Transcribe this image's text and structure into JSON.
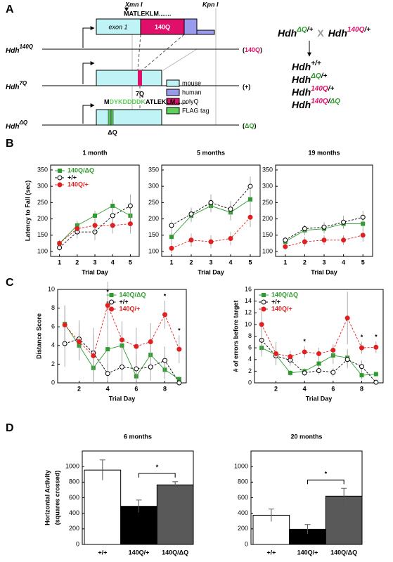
{
  "panel_labels": [
    "A",
    "B",
    "C",
    "D"
  ],
  "diagram": {
    "alleles": [
      {
        "gene": "Hdh",
        "sup": "140Q",
        "product": [
          "(",
          "140Q",
          ")"
        ],
        "exon": "exon 1",
        "repeat": "140Q",
        "xmn": "Xmn I",
        "kpn": "Kpn I",
        "protein": "MATLEKLM......."
      },
      {
        "gene": "Hdh",
        "sup": "7Q",
        "product": [
          "(+)"
        ],
        "repeat": "7Q"
      },
      {
        "gene": "Hdh",
        "sup": "ΔQ",
        "product": [
          "(",
          "ΔQ",
          ")"
        ],
        "repeat": "ΔQ",
        "protein": [
          "M",
          "DYKDDDDK",
          "ATLEKLM......."
        ]
      }
    ],
    "legend": [
      "mouse",
      "human",
      "polyQ",
      "FLAG tag"
    ],
    "cross": {
      "parents": [
        [
          "Hdh",
          "ΔQ",
          "/+"
        ],
        [
          "Hdh",
          "140Q",
          "/+"
        ]
      ],
      "operator": "X",
      "offspring": [
        [
          "Hdh",
          "+/+"
        ],
        [
          "Hdh",
          "ΔQ",
          "/+"
        ],
        [
          "Hdh",
          "140Q",
          "/+"
        ],
        [
          "Hdh",
          "140Q",
          "/",
          "ΔQ"
        ]
      ]
    }
  },
  "chart_data": [
    {
      "type": "line",
      "title": "1 month",
      "x_label": "Trial Day",
      "y_label": "Latency to Fall (sec)",
      "x": [
        1,
        2,
        3,
        4,
        5
      ],
      "xlim": [
        0.5,
        5.5
      ],
      "xticks": [
        1,
        2,
        3,
        4,
        5
      ],
      "ylim": [
        85,
        365
      ],
      "yticks": [
        100,
        150,
        200,
        250,
        300,
        350
      ],
      "legend": "upper left",
      "series": [
        {
          "name": "140Q/ΔQ",
          "color": "#2e9b2e",
          "marker": "square",
          "dash": false,
          "values": [
            125,
            180,
            210,
            240,
            210
          ],
          "errors": [
            10,
            15,
            15,
            20,
            25
          ]
        },
        {
          "name": "+/+",
          "color": "#000000",
          "marker": "circle-open",
          "dash": true,
          "values": [
            112,
            160,
            160,
            210,
            240
          ],
          "errors": [
            10,
            20,
            25,
            25,
            35
          ]
        },
        {
          "name": "140Q/+",
          "color": "#e02020",
          "marker": "circle",
          "dash": true,
          "values": [
            125,
            170,
            180,
            180,
            185
          ],
          "errors": [
            10,
            15,
            20,
            25,
            30
          ]
        }
      ]
    },
    {
      "type": "line",
      "title": "5 months",
      "x_label": "Trial Day",
      "x": [
        1,
        2,
        3,
        4,
        5
      ],
      "xlim": [
        0.5,
        5.5
      ],
      "xticks": [
        1,
        2,
        3,
        4,
        5
      ],
      "ylim": [
        85,
        365
      ],
      "yticks": [
        100,
        150,
        200,
        250,
        300,
        350
      ],
      "series": [
        {
          "name": "140Q/ΔQ",
          "color": "#2e9b2e",
          "marker": "square",
          "dash": false,
          "values": [
            145,
            210,
            240,
            220,
            260
          ],
          "errors": [
            20,
            20,
            20,
            25,
            30
          ]
        },
        {
          "name": "+/+",
          "color": "#000000",
          "marker": "circle-open",
          "dash": true,
          "values": [
            180,
            215,
            250,
            230,
            300
          ],
          "errors": [
            15,
            20,
            25,
            25,
            30
          ]
        },
        {
          "name": "140Q/+",
          "color": "#e02020",
          "marker": "circle",
          "dash": true,
          "values": [
            110,
            135,
            130,
            140,
            205
          ],
          "errors": [
            15,
            20,
            20,
            20,
            30
          ]
        }
      ]
    },
    {
      "type": "line",
      "title": "19 months",
      "x_label": "Trial Day",
      "x": [
        1,
        2,
        3,
        4,
        5
      ],
      "xlim": [
        0.5,
        5.5
      ],
      "xticks": [
        1,
        2,
        3,
        4,
        5
      ],
      "ylim": [
        85,
        365
      ],
      "yticks": [
        100,
        150,
        200,
        250,
        300,
        350
      ],
      "series": [
        {
          "name": "140Q/ΔQ",
          "color": "#2e9b2e",
          "marker": "square",
          "dash": false,
          "values": [
            130,
            165,
            170,
            185,
            185
          ],
          "errors": [
            10,
            15,
            15,
            15,
            20
          ]
        },
        {
          "name": "+/+",
          "color": "#000000",
          "marker": "circle-open",
          "dash": true,
          "values": [
            135,
            170,
            175,
            190,
            205
          ],
          "errors": [
            10,
            12,
            15,
            20,
            20
          ]
        },
        {
          "name": "140Q/+",
          "color": "#e02020",
          "marker": "circle",
          "dash": true,
          "values": [
            115,
            130,
            135,
            135,
            150
          ],
          "errors": [
            10,
            15,
            15,
            15,
            20
          ]
        }
      ]
    },
    {
      "type": "line",
      "x_label": "Trial Day",
      "y_label": "Distance Score",
      "x": [
        1,
        2,
        3,
        4,
        5,
        6,
        7,
        8,
        9
      ],
      "xlim": [
        0.5,
        9.5
      ],
      "xticks": [
        2,
        4,
        6,
        8
      ],
      "ylim": [
        0,
        10
      ],
      "yticks": [
        0,
        2,
        4,
        6,
        8,
        10
      ],
      "legend": "upper center",
      "series": [
        {
          "name": "140Q/ΔQ",
          "color": "#2e9b2e",
          "marker": "square",
          "dash": false,
          "values": [
            6.3,
            4.0,
            1.6,
            3.6,
            4.0,
            0.7,
            3.0,
            1.4,
            0.4
          ],
          "errors": [
            2,
            1.5,
            1.5,
            2.5,
            2,
            1,
            1.5,
            1,
            0.3
          ]
        },
        {
          "name": "+/+",
          "color": "#000000",
          "marker": "circle-open",
          "dash": true,
          "values": [
            4.2,
            4.7,
            3.2,
            1.0,
            1.7,
            1.5,
            1.7,
            2.4,
            0.0
          ],
          "errors": [
            2.5,
            2,
            2,
            1,
            1.5,
            1.5,
            1.5,
            1.5,
            0.2
          ]
        },
        {
          "name": "140Q/+",
          "color": "#e02020",
          "marker": "circle",
          "dash": true,
          "values": [
            6.2,
            4.4,
            2.9,
            8.3,
            4.6,
            3.9,
            4.4,
            7.3,
            3.6
          ],
          "errors": [
            2,
            2,
            3,
            2.5,
            2,
            2,
            2,
            1.5,
            1.5
          ]
        }
      ],
      "annotations": [
        {
          "x": 4,
          "text": "*"
        },
        {
          "x": 8,
          "text": "*"
        },
        {
          "x": 9,
          "text": "*"
        }
      ]
    },
    {
      "type": "line",
      "x_label": "Trial Day",
      "y_label": "# of errors before target",
      "x": [
        1,
        2,
        3,
        4,
        5,
        6,
        7,
        8,
        9
      ],
      "xlim": [
        0.5,
        9.5
      ],
      "xticks": [
        2,
        4,
        6,
        8
      ],
      "ylim": [
        0,
        16
      ],
      "yticks": [
        0,
        2,
        4,
        6,
        8,
        10,
        12,
        14,
        16
      ],
      "legend": "upper left",
      "series": [
        {
          "name": "140Q/ΔQ",
          "color": "#2e9b2e",
          "marker": "square",
          "dash": false,
          "values": [
            6.0,
            4.8,
            1.7,
            2.0,
            3.3,
            4.7,
            4.3,
            1.3,
            1.5
          ],
          "errors": [
            1.5,
            1.5,
            0.5,
            0.5,
            1,
            1.5,
            1.5,
            0.7,
            0.3
          ]
        },
        {
          "name": "+/+",
          "color": "#000000",
          "marker": "circle-open",
          "dash": true,
          "values": [
            7.3,
            4.6,
            3.9,
            1.7,
            2.1,
            1.8,
            4.0,
            2.8,
            0.1
          ],
          "errors": [
            2,
            1.5,
            1,
            0.5,
            0.7,
            0.7,
            1.5,
            1,
            0.1
          ]
        },
        {
          "name": "140Q/+",
          "color": "#e02020",
          "marker": "circle",
          "dash": true,
          "values": [
            10.0,
            5.0,
            4.5,
            5.3,
            5.0,
            5.6,
            11.1,
            6.0,
            6.1
          ],
          "errors": [
            3,
            2,
            1,
            1,
            1,
            1,
            4.5,
            1,
            1
          ]
        }
      ],
      "annotations": [
        {
          "x": 4,
          "text": "*"
        },
        {
          "x": 8,
          "text": "*"
        },
        {
          "x": 9,
          "text": "*"
        }
      ]
    },
    {
      "type": "bar",
      "title": "6 months",
      "y_label_lines": [
        "Horizontal Activity",
        "(squares crossed)"
      ],
      "categories": [
        "+/+",
        "140Q/+",
        "140Q/ΔQ"
      ],
      "values": [
        955,
        490,
        765
      ],
      "errors": [
        130,
        80,
        40
      ],
      "colors": [
        "#ffffff",
        "#000000",
        "#595959"
      ],
      "ylim": [
        0,
        1200
      ],
      "yticks": [
        0,
        200,
        400,
        600,
        800,
        1000
      ],
      "annotations": [
        {
          "between": [
            "140Q/+",
            "140Q/ΔQ"
          ],
          "text": "*"
        }
      ]
    },
    {
      "type": "bar",
      "title": "20 months",
      "categories": [
        "+/+",
        "140Q/+",
        "140Q/ΔQ"
      ],
      "values": [
        375,
        195,
        620
      ],
      "errors": [
        80,
        60,
        100
      ],
      "colors": [
        "#ffffff",
        "#000000",
        "#595959"
      ],
      "ylim": [
        0,
        1200
      ],
      "yticks": [
        0,
        200,
        400,
        600,
        800,
        1000
      ],
      "annotations": [
        {
          "between": [
            "140Q/+",
            "140Q/ΔQ"
          ],
          "text": "*"
        }
      ]
    }
  ]
}
